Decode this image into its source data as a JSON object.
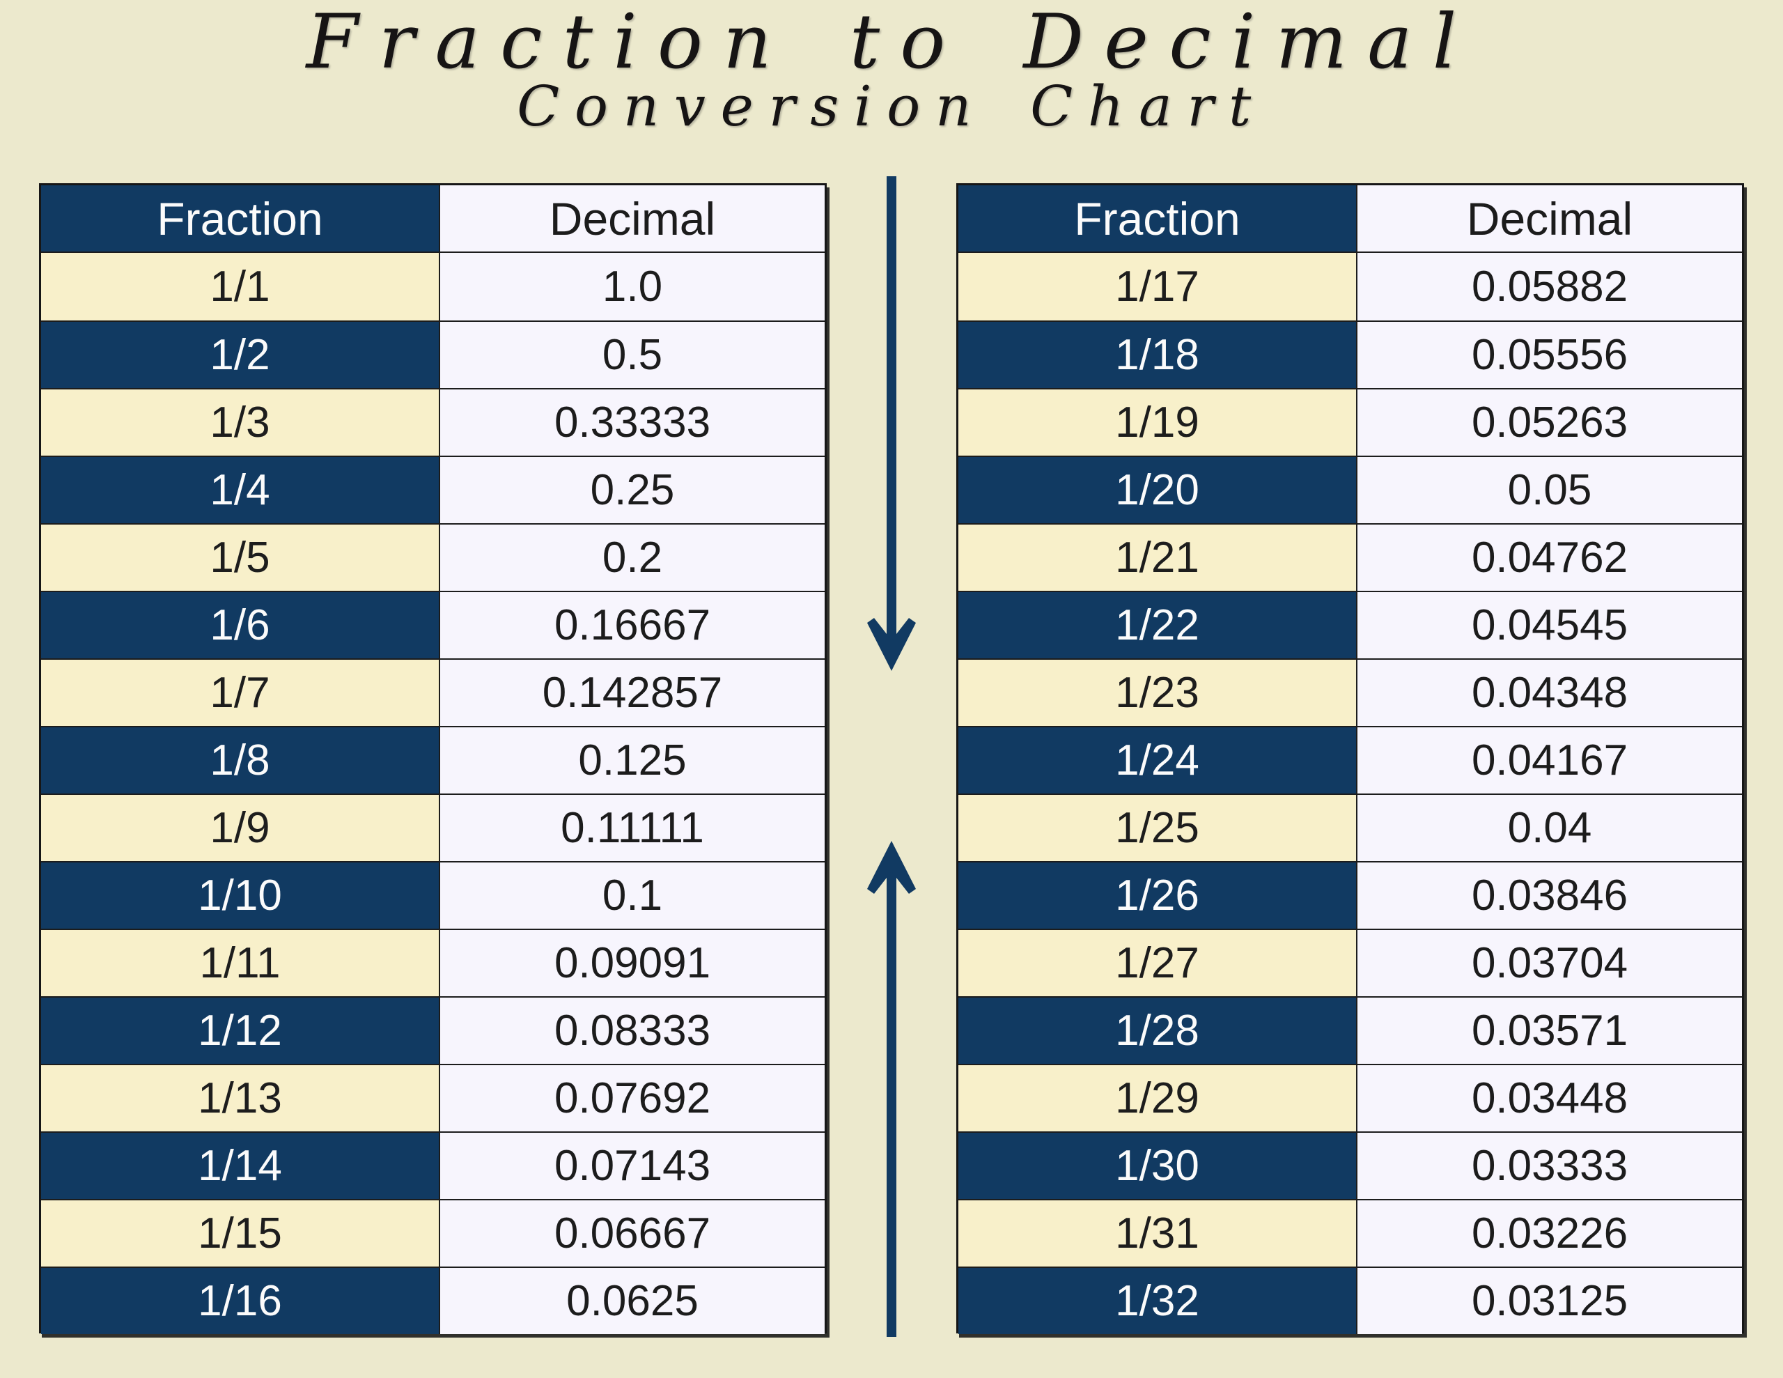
{
  "title": {
    "line1": "Fraction to Decimal",
    "line2": "Conversion Chart"
  },
  "tables": [
    {
      "headers": {
        "fraction": "Fraction",
        "decimal": "Decimal"
      },
      "rows": [
        {
          "fraction": "1/1",
          "decimal": "1.0"
        },
        {
          "fraction": "1/2",
          "decimal": "0.5"
        },
        {
          "fraction": "1/3",
          "decimal": "0.33333"
        },
        {
          "fraction": "1/4",
          "decimal": "0.25"
        },
        {
          "fraction": "1/5",
          "decimal": "0.2"
        },
        {
          "fraction": "1/6",
          "decimal": "0.16667"
        },
        {
          "fraction": "1/7",
          "decimal": "0.142857"
        },
        {
          "fraction": "1/8",
          "decimal": "0.125"
        },
        {
          "fraction": "1/9",
          "decimal": "0.11111"
        },
        {
          "fraction": "1/10",
          "decimal": "0.1"
        },
        {
          "fraction": "1/11",
          "decimal": "0.09091"
        },
        {
          "fraction": "1/12",
          "decimal": "0.08333"
        },
        {
          "fraction": "1/13",
          "decimal": "0.07692"
        },
        {
          "fraction": "1/14",
          "decimal": "0.07143"
        },
        {
          "fraction": "1/15",
          "decimal": "0.06667"
        },
        {
          "fraction": "1/16",
          "decimal": "0.0625"
        }
      ]
    },
    {
      "headers": {
        "fraction": "Fraction",
        "decimal": "Decimal"
      },
      "rows": [
        {
          "fraction": "1/17",
          "decimal": "0.05882"
        },
        {
          "fraction": "1/18",
          "decimal": "0.05556"
        },
        {
          "fraction": "1/19",
          "decimal": "0.05263"
        },
        {
          "fraction": "1/20",
          "decimal": "0.05"
        },
        {
          "fraction": "1/21",
          "decimal": "0.04762"
        },
        {
          "fraction": "1/22",
          "decimal": "0.04545"
        },
        {
          "fraction": "1/23",
          "decimal": "0.04348"
        },
        {
          "fraction": "1/24",
          "decimal": "0.04167"
        },
        {
          "fraction": "1/25",
          "decimal": "0.04"
        },
        {
          "fraction": "1/26",
          "decimal": "0.03846"
        },
        {
          "fraction": "1/27",
          "decimal": "0.03704"
        },
        {
          "fraction": "1/28",
          "decimal": "0.03571"
        },
        {
          "fraction": "1/29",
          "decimal": "0.03448"
        },
        {
          "fraction": "1/30",
          "decimal": "0.03333"
        },
        {
          "fraction": "1/31",
          "decimal": "0.03226"
        },
        {
          "fraction": "1/32",
          "decimal": "0.03125"
        }
      ]
    }
  ],
  "icons": {
    "down_arrow": "down-arrow",
    "up_arrow": "up-arrow"
  },
  "colors": {
    "background": "#ece9cd",
    "navy": "#113a62",
    "cream": "#f8f0ca",
    "cell_light": "#f7f5fd",
    "border": "#1c1c1c",
    "title_text": "#161414"
  }
}
